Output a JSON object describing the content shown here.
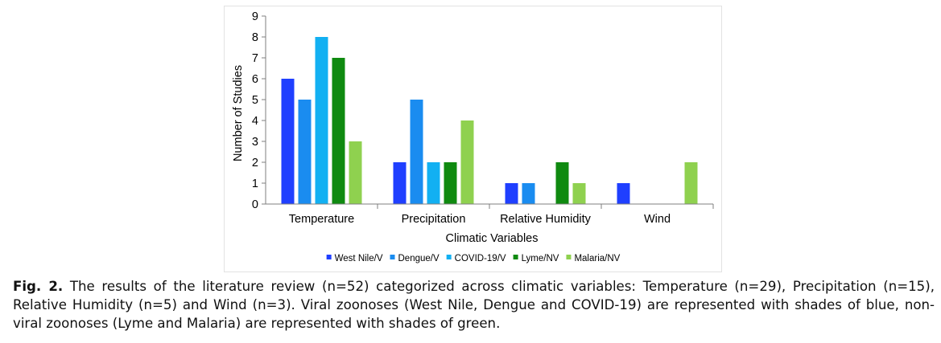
{
  "chart_data": {
    "type": "bar",
    "categories": [
      "Temperature",
      "Precipitation",
      "Relative Humidity",
      "Wind"
    ],
    "series": [
      {
        "name": "West Nile/V",
        "color": "#1f3fff",
        "values": [
          6,
          2,
          1,
          1
        ]
      },
      {
        "name": "Dengue/V",
        "color": "#1a8cf0",
        "values": [
          5,
          5,
          1,
          0
        ]
      },
      {
        "name": "COVID-19/V",
        "color": "#12b0f2",
        "values": [
          8,
          2,
          0,
          0
        ]
      },
      {
        "name": "Lyme/NV",
        "color": "#0f8a10",
        "values": [
          7,
          2,
          2,
          0
        ]
      },
      {
        "name": "Malaria/NV",
        "color": "#8fd14f",
        "values": [
          3,
          4,
          1,
          2
        ]
      }
    ],
    "xlabel": "Climatic Variables",
    "ylabel": "Number of Studies",
    "ylim": [
      0,
      9
    ],
    "yticks": [
      0,
      1,
      2,
      3,
      4,
      5,
      6,
      7,
      8,
      9
    ],
    "grid": false,
    "legend": "bottom"
  },
  "caption": {
    "label": "Fig. 2.",
    "text": "The results of the literature review (n=52) categorized across climatic variables: Temperature (n=29), Precipitation (n=15), Relative Humidity (n=5) and Wind (n=3). Viral zoonoses (West Nile, Dengue and COVID-19) are represented with shades of blue, non-viral zoonoses (Lyme and Malaria) are represented with shades of green."
  }
}
